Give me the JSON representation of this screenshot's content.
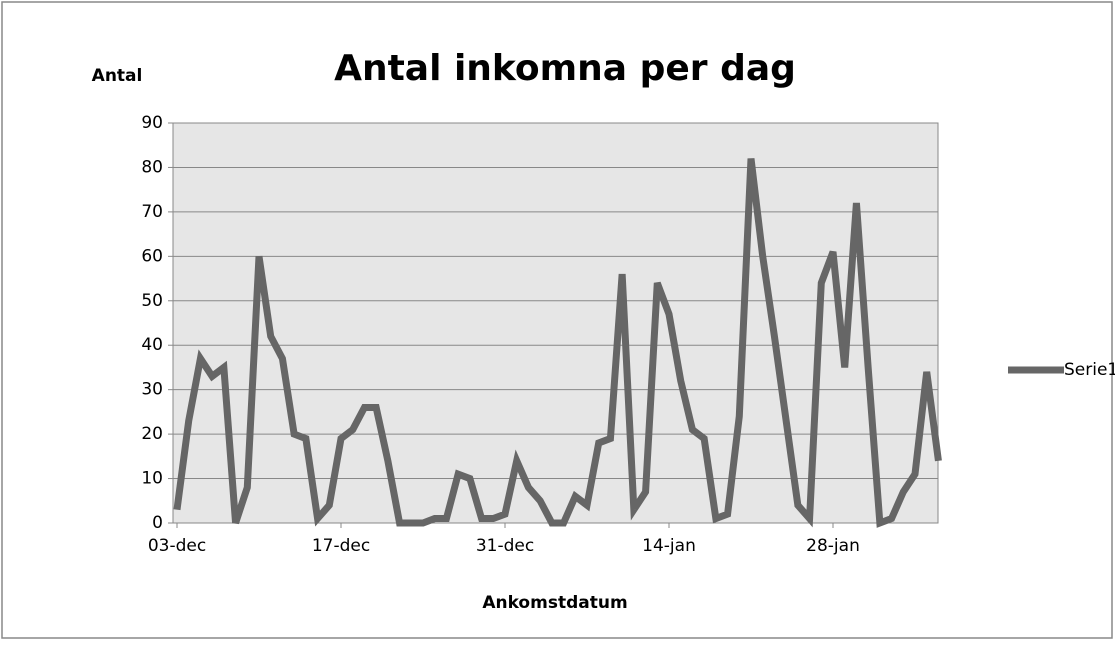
{
  "chart_data": {
    "type": "line",
    "title": "Antal inkomna per dag",
    "y_label": "Antal",
    "x_label": "Ankomstdatum",
    "categories": [
      "03-dec",
      null,
      null,
      null,
      null,
      null,
      null,
      null,
      null,
      null,
      null,
      null,
      null,
      null,
      "17-dec",
      null,
      null,
      null,
      null,
      null,
      null,
      null,
      null,
      null,
      null,
      null,
      null,
      null,
      "31-dec",
      null,
      null,
      null,
      null,
      null,
      null,
      null,
      null,
      null,
      null,
      null,
      null,
      null,
      "14-jan",
      null,
      null,
      null,
      null,
      null,
      null,
      null,
      null,
      null,
      null,
      null,
      null,
      null,
      "28-jan",
      null,
      null,
      null,
      null,
      null,
      null,
      null,
      null,
      null
    ],
    "series": [
      {
        "name": "Serie1",
        "color": "#666666",
        "values": [
          3,
          23,
          37,
          33,
          35,
          0,
          8,
          60,
          42,
          37,
          20,
          19,
          1,
          4,
          19,
          21,
          26,
          26,
          14,
          0,
          0,
          0,
          1,
          1,
          11,
          10,
          1,
          1,
          2,
          14,
          8,
          5,
          0,
          0,
          6,
          4,
          18,
          19,
          56,
          3,
          7,
          54,
          47,
          32,
          21,
          19,
          1,
          2,
          24,
          82,
          60,
          42,
          23,
          4,
          1,
          54,
          61,
          35,
          72,
          35,
          0,
          1,
          7,
          11,
          34,
          14
        ]
      }
    ],
    "ylim": [
      0,
      90
    ],
    "yticks": [
      0,
      10,
      20,
      30,
      40,
      50,
      60,
      70,
      80,
      90
    ],
    "grid": true,
    "legend": "right"
  }
}
